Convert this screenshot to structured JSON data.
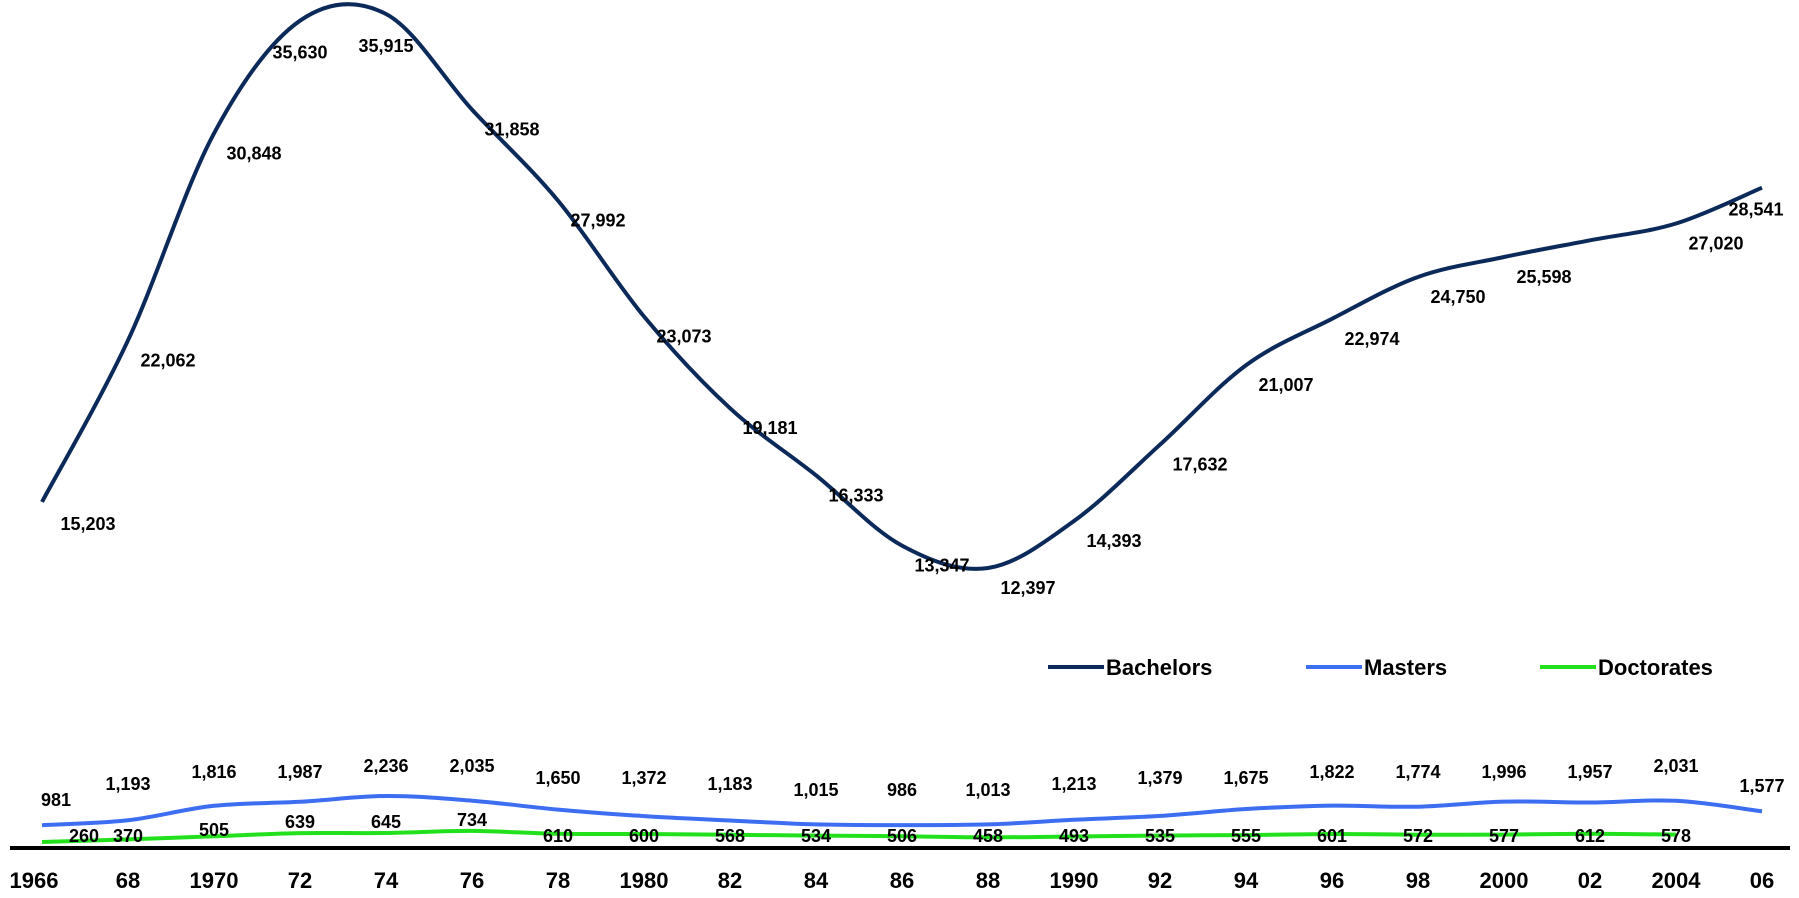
{
  "chart_data": {
    "type": "line",
    "title": "",
    "xlabel": "",
    "ylabel": "",
    "x": [
      1966,
      1968,
      1970,
      1972,
      1974,
      1976,
      1978,
      1980,
      1982,
      1984,
      1986,
      1988,
      1990,
      1992,
      1994,
      1996,
      1998,
      2000,
      2002,
      2004,
      2006
    ],
    "x_tick_labels": [
      "1966",
      "68",
      "1970",
      "72",
      "74",
      "76",
      "78",
      "1980",
      "82",
      "84",
      "86",
      "88",
      "1990",
      "92",
      "94",
      "96",
      "98",
      "2000",
      "02",
      "2004",
      "06"
    ],
    "series": [
      {
        "name": "Bachelors",
        "color": "#0b2a5a",
        "values": [
          15203,
          22062,
          30848,
          35630,
          35915,
          31858,
          27992,
          23073,
          19181,
          16333,
          13347,
          12397,
          14393,
          17632,
          21007,
          22974,
          24750,
          25598,
          null,
          27020,
          28541
        ],
        "labels": [
          "15,203",
          "22,062",
          "30,848",
          "35,630",
          "35,915",
          "31,858",
          "27,992",
          "23,073",
          "19,181",
          "16,333",
          "13,347",
          "12,397",
          "14,393",
          "17,632",
          "21,007",
          "22,974",
          "24,750",
          "25,598",
          "",
          "27,020",
          "28,541"
        ]
      },
      {
        "name": "Masters",
        "color": "#3d6ef2",
        "values": [
          981,
          1193,
          1816,
          1987,
          2236,
          2035,
          1650,
          1372,
          1183,
          1015,
          986,
          1013,
          1213,
          1379,
          1675,
          1822,
          1774,
          1996,
          1957,
          2031,
          1577
        ],
        "labels": [
          "981",
          "1,193",
          "1,816",
          "1,987",
          "2,236",
          "2,035",
          "1,650",
          "1,372",
          "1,183",
          "1,015",
          "986",
          "1,013",
          "1,213",
          "1,379",
          "1,675",
          "1,822",
          "1,774",
          "1,996",
          "1,957",
          "2,031",
          "1,577"
        ]
      },
      {
        "name": "Doctorates",
        "color": "#22e01c",
        "values": [
          260,
          370,
          505,
          639,
          645,
          734,
          610,
          600,
          568,
          534,
          506,
          458,
          493,
          535,
          555,
          601,
          572,
          577,
          612,
          578,
          null
        ],
        "labels": [
          "260",
          "370",
          "505",
          "639",
          "645",
          "734",
          "610",
          "600",
          "568",
          "534",
          "506",
          "458",
          "493",
          "535",
          "555",
          "601",
          "572",
          "577",
          "612",
          "578",
          ""
        ]
      }
    ],
    "legend": {
      "position": "right",
      "entries": [
        "Bachelors",
        "Masters",
        "Doctorates"
      ]
    },
    "grid": false
  }
}
